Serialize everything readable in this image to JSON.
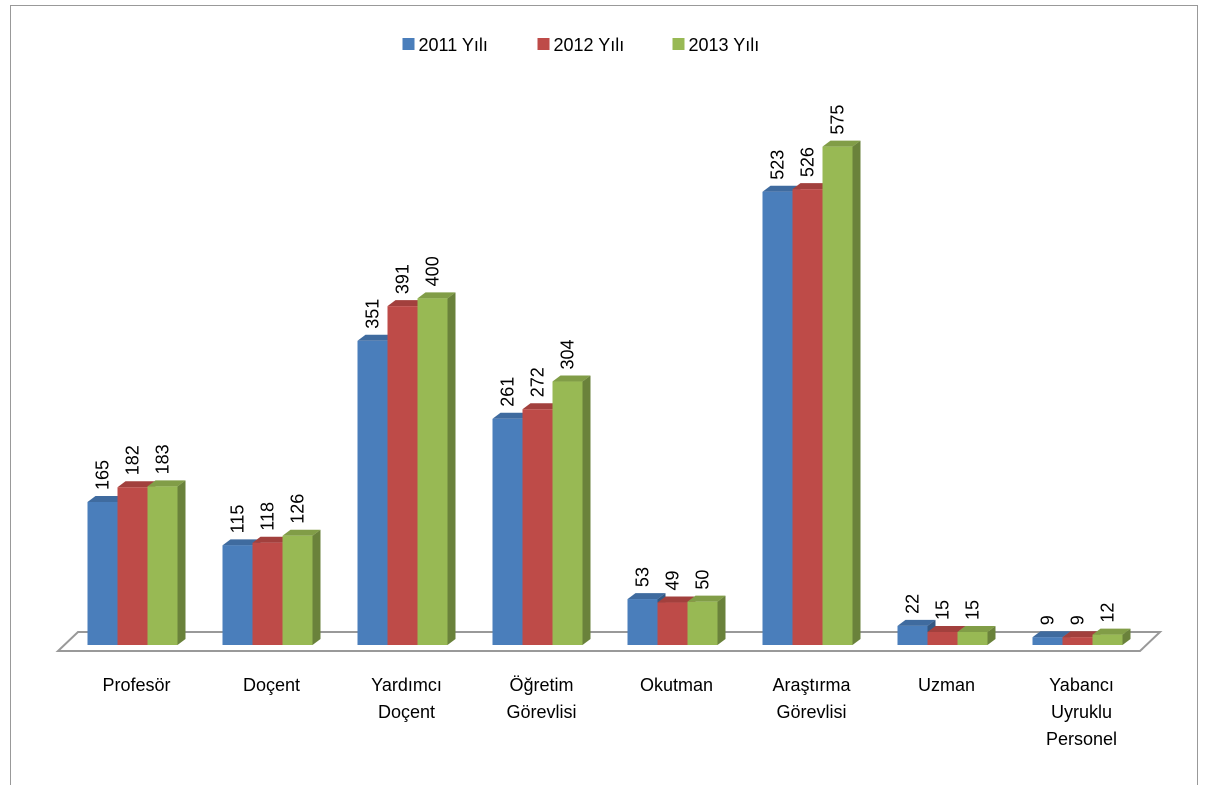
{
  "chart_data": {
    "type": "bar3d",
    "categories": [
      "Profesör",
      "Doçent",
      "Yardımcı Doçent",
      "Öğretim Görevlisi",
      "Okutman",
      "Araştırma Görevlisi",
      "Uzman",
      "Yabancı Uyruklu Personel"
    ],
    "series": [
      {
        "name": "2011 Yılı",
        "color": "#4a7ebb",
        "values": [
          165,
          115,
          351,
          261,
          53,
          523,
          22,
          9
        ]
      },
      {
        "name": "2012 Yılı",
        "color": "#be4b48",
        "values": [
          182,
          118,
          391,
          272,
          49,
          526,
          15,
          9
        ]
      },
      {
        "name": "2013 Yılı",
        "color": "#98b954",
        "values": [
          183,
          126,
          400,
          304,
          50,
          575,
          15,
          12
        ]
      }
    ],
    "ylim": [
      0,
      600
    ],
    "legend": "top"
  }
}
